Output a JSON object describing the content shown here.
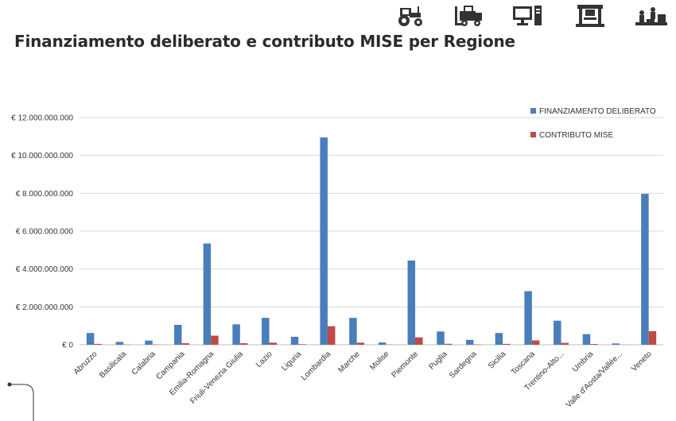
{
  "page": {
    "title": "Finanziamento deliberato e contributo MISE per Regione"
  },
  "header_icons": [
    "tractor-icon",
    "forklift-icon",
    "computer-icon",
    "press-machine-icon",
    "workshop-icon"
  ],
  "chart_data": {
    "type": "bar",
    "title": "Finanziamento deliberato e contributo MISE per Regione",
    "xlabel": "",
    "ylabel": "",
    "ylim": [
      0,
      12000000000
    ],
    "y_ticks": [
      0,
      2000000000,
      4000000000,
      6000000000,
      8000000000,
      10000000000,
      12000000000
    ],
    "y_tick_labels": [
      "€ 0",
      "€ 2.000.000.000",
      "€ 4.000.000.000",
      "€ 6.000.000.000",
      "€ 8.000.000.000",
      "€ 10.000.000.000",
      "€ 12.000.000.000"
    ],
    "grid": true,
    "legend_position": "top-right",
    "categories": [
      "Abruzzo",
      "Basilicata",
      "Calabria",
      "Campania",
      "Emilia-Romagna",
      "Friuli-Venezia Giulia",
      "Lazio",
      "Liguria",
      "Lombardia",
      "Marche",
      "Molise",
      "Piemonte",
      "Puglia",
      "Sardegna",
      "Sicilia",
      "Toscana",
      "Trentino-Alto...",
      "Umbria",
      "Valle d'Aosta/Vallée...",
      "Veneto"
    ],
    "series": [
      {
        "name": "FINANZIAMENTO DELIBERATO",
        "color": "#4a7ebb",
        "values": [
          620000000,
          150000000,
          220000000,
          1050000000,
          5350000000,
          1080000000,
          1420000000,
          420000000,
          10950000000,
          1420000000,
          120000000,
          4450000000,
          700000000,
          260000000,
          620000000,
          2830000000,
          1270000000,
          560000000,
          70000000,
          7970000000
        ]
      },
      {
        "name": "CONTRIBUTO MISE",
        "color": "#be4b48",
        "values": [
          45000000,
          10000000,
          15000000,
          80000000,
          480000000,
          80000000,
          110000000,
          30000000,
          980000000,
          110000000,
          8000000,
          390000000,
          50000000,
          20000000,
          45000000,
          230000000,
          100000000,
          40000000,
          5000000,
          720000000
        ]
      }
    ]
  }
}
